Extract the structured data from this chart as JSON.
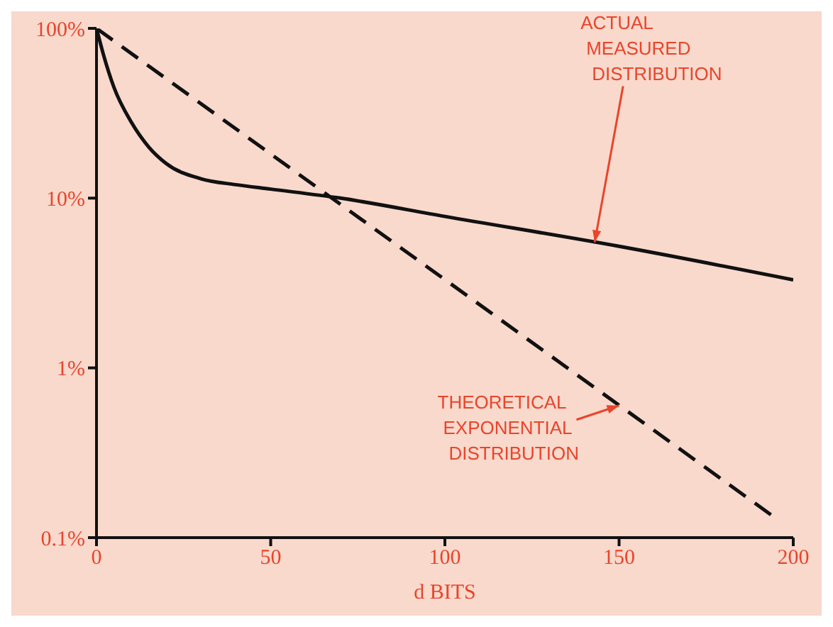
{
  "chart_data": {
    "type": "line",
    "xlabel": "d BITS",
    "grid": false,
    "log": "y",
    "xlim": [
      0,
      200
    ],
    "xticks": [
      0,
      50,
      100,
      150,
      200
    ],
    "ylim": [
      0.1,
      100
    ],
    "yticks": [
      {
        "value": 0.1,
        "label": "0.1%"
      },
      {
        "value": 1,
        "label": "1%"
      },
      {
        "value": 10,
        "label": "10%"
      },
      {
        "value": 100,
        "label": "100%"
      }
    ],
    "series": [
      {
        "color": "#111111",
        "line_style": "solid",
        "x": [
          0,
          2,
          5,
          10,
          15,
          20,
          30,
          40,
          50,
          70,
          100,
          150,
          200
        ],
        "values": [
          100,
          70,
          45,
          28,
          20,
          16,
          13,
          12,
          11.3,
          10,
          7.8,
          5.2,
          3.3
        ]
      },
      {
        "color": "#111111",
        "line_style": "dashed",
        "x": [
          0,
          195
        ],
        "values": [
          100,
          0.13
        ]
      }
    ],
    "annotations": [
      {
        "text": "ACTUAL MEASURED DISTRIBUTION",
        "x": 143,
        "y": 5.5
      },
      {
        "text": "THEORETICAL EXPONENTIAL DISTRIBUTION",
        "x": 150,
        "y": 0.6
      }
    ]
  }
}
